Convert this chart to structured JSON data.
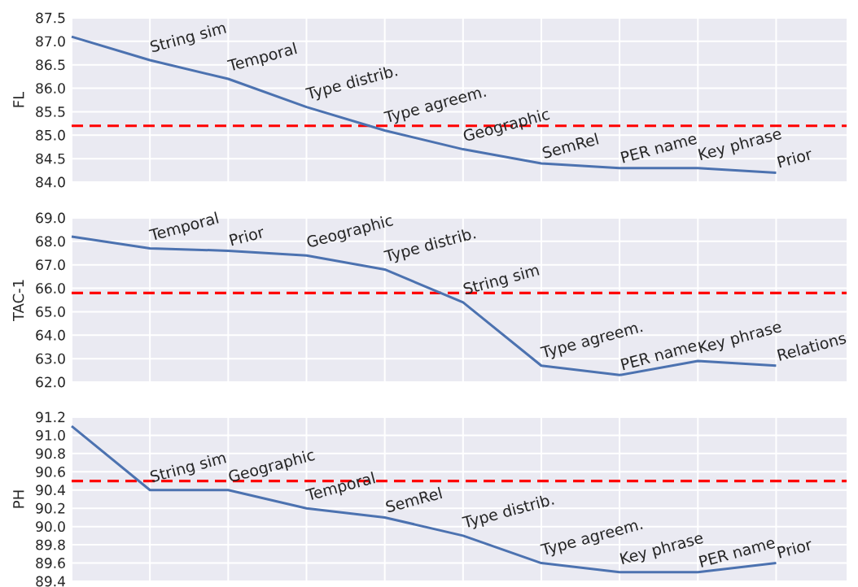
{
  "chart_data": [
    {
      "type": "line",
      "ylabel": "FL",
      "categories": [
        null,
        null,
        null,
        null,
        null,
        null,
        null,
        null,
        null,
        null
      ],
      "ylim": [
        84.0,
        87.5
      ],
      "yticks": [
        {
          "value": 84.0,
          "label": "84.0"
        },
        {
          "value": 84.5,
          "label": "84.5"
        },
        {
          "value": 85.0,
          "label": "85.0"
        },
        {
          "value": 85.5,
          "label": "85.5"
        },
        {
          "value": 86.0,
          "label": "86.0"
        },
        {
          "value": 86.5,
          "label": "86.5"
        },
        {
          "value": 87.0,
          "label": "87.0"
        },
        {
          "value": 87.5,
          "label": "87.5"
        }
      ],
      "series": [
        {
          "color": "#4c72b0",
          "values": [
            87.1,
            86.6,
            86.2,
            85.6,
            85.1,
            84.7,
            84.4,
            84.3,
            84.3,
            84.2
          ],
          "value_labels": [
            null,
            "String sim",
            "Temporal",
            "Type distrib.",
            "Type agreem.",
            "Geographic",
            "SemRel",
            "PER name",
            "Key phrase",
            "Prior"
          ]
        }
      ],
      "ref_lines": [
        {
          "axis": "y",
          "value": 85.2,
          "color": "#ff0000",
          "line_style": "dashed"
        }
      ],
      "grid": true,
      "tick_labels": "y"
    },
    {
      "type": "line",
      "ylabel": "TAC-1",
      "categories": [
        null,
        null,
        null,
        null,
        null,
        null,
        null,
        null,
        null,
        null
      ],
      "ylim": [
        62.0,
        69.0
      ],
      "yticks": [
        {
          "value": 62.0,
          "label": "62.0"
        },
        {
          "value": 63.0,
          "label": "63.0"
        },
        {
          "value": 64.0,
          "label": "64.0"
        },
        {
          "value": 65.0,
          "label": "65.0"
        },
        {
          "value": 66.0,
          "label": "66.0"
        },
        {
          "value": 67.0,
          "label": "67.0"
        },
        {
          "value": 68.0,
          "label": "68.0"
        },
        {
          "value": 69.0,
          "label": "69.0"
        }
      ],
      "series": [
        {
          "color": "#4c72b0",
          "values": [
            68.2,
            67.7,
            67.6,
            67.4,
            66.8,
            65.4,
            62.7,
            62.3,
            62.9,
            62.7
          ],
          "value_labels": [
            null,
            "Temporal",
            "Prior",
            "Geographic",
            "Type distrib.",
            "String sim",
            "Type agreem.",
            "PER name",
            "Key phrase",
            "Relations"
          ]
        }
      ],
      "ref_lines": [
        {
          "axis": "y",
          "value": 65.8,
          "color": "#ff0000",
          "line_style": "dashed"
        }
      ],
      "grid": true,
      "tick_labels": "y"
    },
    {
      "type": "line",
      "ylabel": "PH",
      "categories": [
        null,
        null,
        null,
        null,
        null,
        null,
        null,
        null,
        null,
        null
      ],
      "ylim": [
        89.4,
        91.2
      ],
      "yticks": [
        {
          "value": 89.4,
          "label": "89.4"
        },
        {
          "value": 89.6,
          "label": "89.6"
        },
        {
          "value": 89.8,
          "label": "89.8"
        },
        {
          "value": 90.0,
          "label": "90.0"
        },
        {
          "value": 90.2,
          "label": "90.2"
        },
        {
          "value": 90.4,
          "label": "90.4"
        },
        {
          "value": 90.6,
          "label": "90.6"
        },
        {
          "value": 90.8,
          "label": "90.8"
        },
        {
          "value": 91.0,
          "label": "91.0"
        },
        {
          "value": 91.2,
          "label": "91.2"
        }
      ],
      "series": [
        {
          "color": "#4c72b0",
          "values": [
            91.1,
            90.4,
            90.4,
            90.2,
            90.1,
            89.9,
            89.6,
            89.5,
            89.5,
            89.6
          ],
          "value_labels": [
            null,
            "String sim",
            "Geographic",
            "Temporal",
            "SemRel",
            "Type distrib.",
            "Type agreem.",
            "Key phrase",
            "PER name",
            "Prior"
          ]
        }
      ],
      "ref_lines": [
        {
          "axis": "y",
          "value": 90.5,
          "color": "#ff0000",
          "line_style": "dashed"
        }
      ],
      "grid": true,
      "tick_labels": "y"
    }
  ]
}
